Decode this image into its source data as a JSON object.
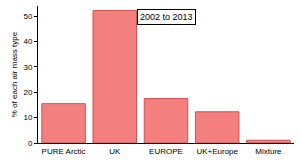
{
  "chart_data": {
    "type": "bar",
    "annotation": "2002 to 2013",
    "y_label": "% of each air mass type",
    "categories": [
      "PURE Arctic",
      "UK",
      "EUROPE",
      "UK+Europe",
      "Mixture"
    ],
    "values": [
      15.5,
      52.2,
      17.5,
      12.3,
      1.1
    ],
    "color": "#f47f7f",
    "ylim": [
      0,
      54
    ],
    "yticks": [
      0,
      10,
      20,
      30,
      40,
      50
    ],
    "grid": false
  }
}
